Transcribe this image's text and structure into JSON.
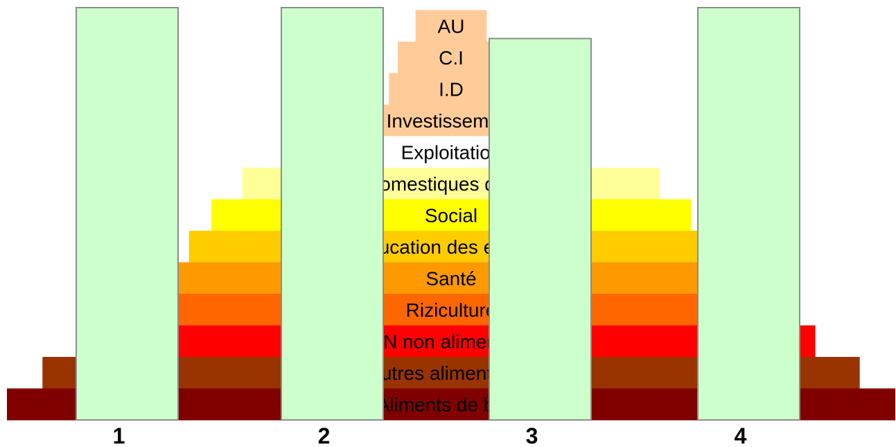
{
  "pyramid": {
    "layers": [
      {
        "label": "AU",
        "color": "#ffcc99",
        "width_frac": 0.08
      },
      {
        "label": "C.I",
        "color": "#ffcc99",
        "width_frac": 0.12
      },
      {
        "label": "I.D",
        "color": "#ffcc99",
        "width_frac": 0.14
      },
      {
        "label": "Investissement",
        "color": "#ffcc99",
        "width_frac": 0.25
      },
      {
        "label": "Exploitation",
        "color": "#ffffff",
        "width_frac": 0.3
      },
      {
        "label": "Domestiques divers",
        "color": "#ffff99",
        "width_frac": 0.47
      },
      {
        "label": "Social",
        "color": "#ffff00",
        "width_frac": 0.54
      },
      {
        "label": "Education des enfants",
        "color": "#ffcc00",
        "width_frac": 0.59
      },
      {
        "label": "Santé",
        "color": "#ff9900",
        "width_frac": 0.64
      },
      {
        "label": "Riziculture",
        "color": "#ff6600",
        "width_frac": 0.74
      },
      {
        "label": "PPN non alimentaires",
        "color": "#ff0000",
        "width_frac": 0.82
      },
      {
        "label": "Autres alimentaires",
        "color": "#993300",
        "width_frac": 0.92
      },
      {
        "label": "Aliments de base",
        "color": "#800000",
        "width_frac": 1.0
      }
    ]
  },
  "columns": [
    {
      "label": "1",
      "fill_frac": 1.0
    },
    {
      "label": "2",
      "fill_frac": 1.0
    },
    {
      "label": "3",
      "fill_frac": 0.925
    },
    {
      "label": "4",
      "fill_frac": 1.0
    }
  ],
  "colors": {
    "column_fill": "#ccffcc",
    "column_border": "#8c8c8c"
  }
}
